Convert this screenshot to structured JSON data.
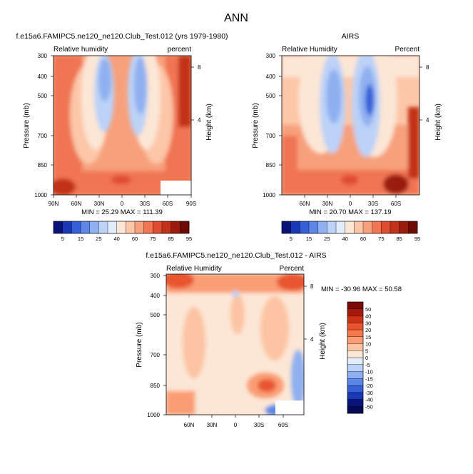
{
  "page": {
    "title": "ANN"
  },
  "chart_data": [
    {
      "type": "heatmap",
      "id": "model",
      "title": "f.e15a6.FAMIPC5.ne120_ne120.Club_Test.012 (yrs 1979-1980)",
      "left_label": "Relative humidity",
      "right_label": "percent",
      "ylabel": "Pressure (mb)",
      "y2label": "Height (km)",
      "y_ticks": [
        "300",
        "400",
        "500",
        "700",
        "850",
        "1000"
      ],
      "y2_ticks": [
        "8",
        "4"
      ],
      "x_ticks": [
        "90N",
        "60N",
        "30N",
        "0",
        "30S",
        "60S",
        "90S"
      ],
      "stats": "MIN = 25.29  MAX = 111.39",
      "levels": [
        5,
        15,
        25,
        40,
        60,
        75,
        85,
        95
      ]
    },
    {
      "type": "heatmap",
      "id": "obs",
      "title": "AIRS",
      "left_label": "Relative Humidity",
      "right_label": "Percent",
      "ylabel": "Pressure (mb)",
      "y2label": "Height (km)",
      "y_ticks": [
        "300",
        "400",
        "500",
        "700",
        "850",
        "1000"
      ],
      "y2_ticks": [
        "8",
        "4"
      ],
      "x_ticks": [
        "60N",
        "30N",
        "0",
        "30S",
        "60S"
      ],
      "stats": "MIN = 20.70  MAX = 137.19",
      "levels": [
        5,
        15,
        25,
        40,
        60,
        75,
        85,
        95
      ]
    },
    {
      "type": "heatmap",
      "id": "diff",
      "title": "f.e15a6.FAMIPC5.ne120_ne120.Club_Test.012 - AIRS",
      "left_label": "Relative Humidity",
      "right_label": "Percent",
      "ylabel": "Pressure (mb)",
      "y2label": "Height (km)",
      "y_ticks": [
        "300",
        "400",
        "500",
        "700",
        "850",
        "1000"
      ],
      "y2_ticks": [
        "8",
        "4"
      ],
      "x_ticks": [
        "60N",
        "30N",
        "0",
        "30S",
        "60S"
      ],
      "stats": "MIN = -30.96  MAX =  50.58",
      "levels": [
        50,
        40,
        30,
        20,
        15,
        10,
        5,
        0,
        -5,
        -10,
        -15,
        -20,
        -30,
        -40,
        -50
      ]
    }
  ],
  "colors": {
    "abs_palette": [
      "#08147a",
      "#1a37b5",
      "#3560d8",
      "#5e86e8",
      "#8fb0f0",
      "#bcd2f7",
      "#e3ecfb",
      "#fce6d6",
      "#fcc6a8",
      "#f7a07c",
      "#f07552",
      "#e04c30",
      "#c23219",
      "#9b1c0d",
      "#6e0b05"
    ],
    "diff_palette": [
      "#7b0a06",
      "#a8190c",
      "#cc3116",
      "#e8542d",
      "#f7784c",
      "#f99d74",
      "#fcc4a2",
      "#fce6d6",
      "#e3ecfb",
      "#bcd2f7",
      "#8fb0f0",
      "#5e86e8",
      "#3560d8",
      "#1a37b5",
      "#08147a",
      "#050a52"
    ]
  }
}
